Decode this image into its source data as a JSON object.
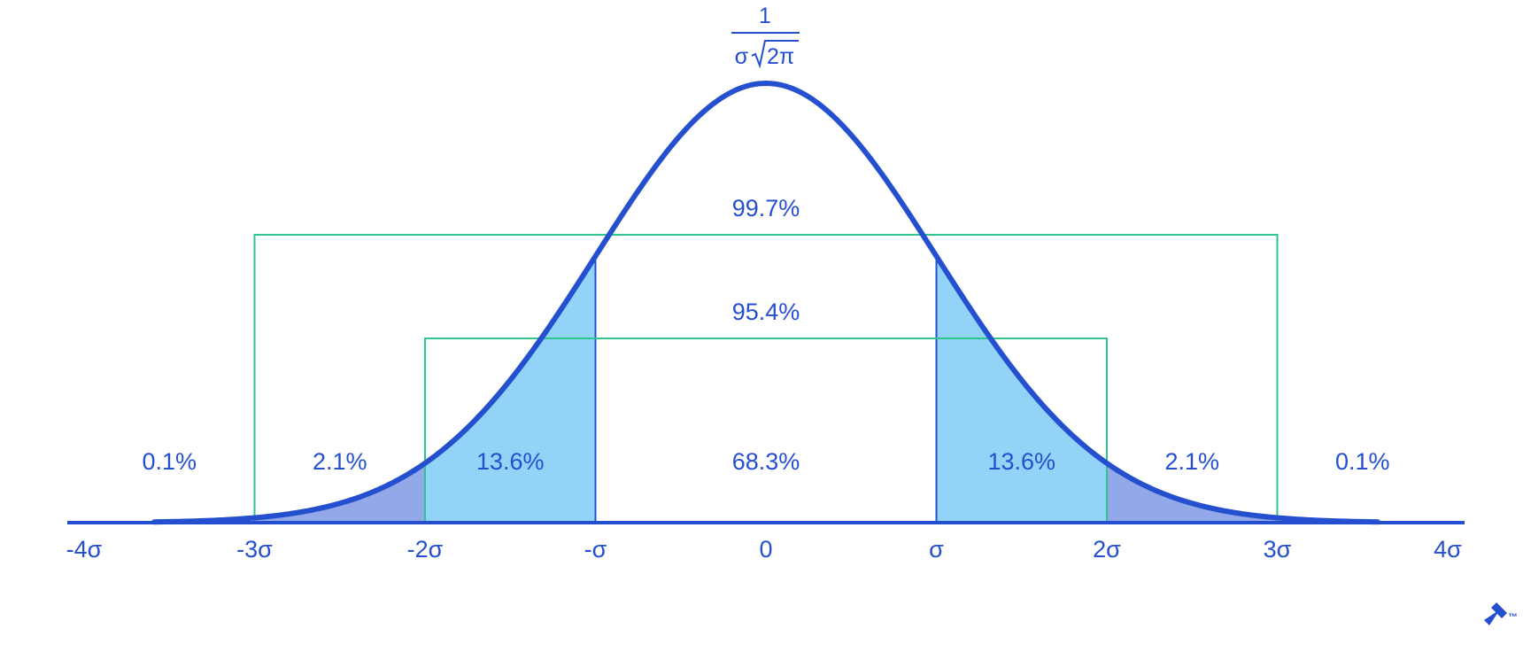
{
  "peak_formula": {
    "numerator": "1",
    "denominator_sigma": "σ",
    "denominator_radicand": "2π"
  },
  "chart_data": {
    "type": "area",
    "distribution": "standard normal density",
    "mean": 0,
    "sd": 1,
    "xlim": [
      -4,
      4
    ],
    "x_ticks": [
      {
        "value": -4,
        "label": "-4σ"
      },
      {
        "value": -3,
        "label": "-3σ"
      },
      {
        "value": -2,
        "label": "-2σ"
      },
      {
        "value": -1,
        "label": "-σ"
      },
      {
        "value": 0,
        "label": "0"
      },
      {
        "value": 1,
        "label": "σ"
      },
      {
        "value": 2,
        "label": "2σ"
      },
      {
        "value": 3,
        "label": "3σ"
      },
      {
        "value": 4,
        "label": "4σ"
      }
    ],
    "regions": [
      {
        "from": -4,
        "to": -3,
        "label": "0.1%",
        "filled": false
      },
      {
        "from": -3,
        "to": -2,
        "label": "2.1%",
        "filled": true,
        "color": "#93a8e8"
      },
      {
        "from": -2,
        "to": -1,
        "label": "13.6%",
        "filled": true,
        "color": "#92d3f7"
      },
      {
        "from": -1,
        "to": 1,
        "label": "68.3%",
        "filled": false
      },
      {
        "from": 1,
        "to": 2,
        "label": "13.6%",
        "filled": true,
        "color": "#92d3f7"
      },
      {
        "from": 2,
        "to": 3,
        "label": "2.1%",
        "filled": true,
        "color": "#93a8e8"
      },
      {
        "from": 3,
        "to": 4,
        "label": "0.1%",
        "filled": false
      }
    ],
    "brackets": [
      {
        "from": -3,
        "to": 3,
        "label": "99.7%",
        "color": "#2ec58f"
      },
      {
        "from": -2,
        "to": 2,
        "label": "95.4%",
        "color": "#2ec58f"
      }
    ],
    "colors": {
      "curve": "#2450d0",
      "axis": "#2450d0",
      "text": "#2450d0",
      "divider": "#2450d0"
    }
  },
  "logo": {
    "trademark": "™",
    "icon": "brand-logo-icon"
  }
}
